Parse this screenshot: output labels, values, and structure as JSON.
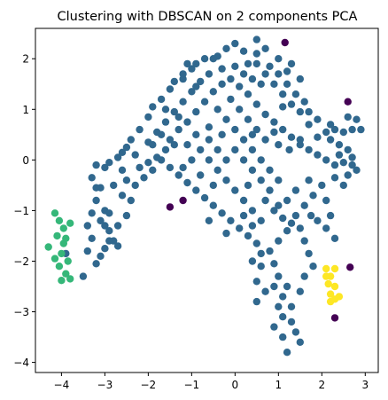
{
  "chart_data": {
    "type": "scatter",
    "title": "Clustering with DBSCAN on 2 components PCA",
    "xlabel": "",
    "ylabel": "",
    "xlim": [
      -4.6,
      3.3
    ],
    "ylim": [
      -4.2,
      2.6
    ],
    "xticks": [
      -4,
      -3,
      -2,
      -1,
      0,
      1,
      2,
      3
    ],
    "yticks": [
      -4,
      -3,
      -2,
      -1,
      0,
      1,
      2
    ],
    "xtick_labels": [
      "−4",
      "−3",
      "−2",
      "−1",
      "0",
      "1",
      "2",
      "3"
    ],
    "ytick_labels": [
      "−4",
      "−3",
      "−2",
      "−1",
      "0",
      "1",
      "2"
    ],
    "grid": false,
    "legend": "none",
    "colormap": "viridis",
    "series": [
      {
        "cluster": -1,
        "color": "#440154",
        "points": [
          [
            1.15,
            2.32
          ],
          [
            2.6,
            1.15
          ],
          [
            -1.5,
            -0.93
          ],
          [
            -1.2,
            -0.8
          ],
          [
            2.65,
            -2.12
          ],
          [
            2.3,
            -3.12
          ]
        ]
      },
      {
        "cluster": 0,
        "color": "#31688e",
        "points": [
          [
            -0.4,
            2.05
          ],
          [
            -0.2,
            2.2
          ],
          [
            0.0,
            2.3
          ],
          [
            0.2,
            2.15
          ],
          [
            0.5,
            2.38
          ],
          [
            0.7,
            2.2
          ],
          [
            -0.9,
            1.9
          ],
          [
            -1.0,
            1.8
          ],
          [
            -1.2,
            1.7
          ],
          [
            -1.4,
            1.55
          ],
          [
            -1.5,
            1.4
          ],
          [
            -1.7,
            1.2
          ],
          [
            -1.9,
            1.05
          ],
          [
            -2.0,
            0.85
          ],
          [
            -2.2,
            0.6
          ],
          [
            -2.4,
            0.4
          ],
          [
            -2.5,
            0.25
          ],
          [
            -2.7,
            0.05
          ],
          [
            -2.9,
            -0.05
          ],
          [
            -3.0,
            -0.15
          ],
          [
            -3.2,
            -0.1
          ],
          [
            -3.3,
            -0.35
          ],
          [
            -3.1,
            -0.55
          ],
          [
            -3.2,
            -0.8
          ],
          [
            -3.0,
            -1.0
          ],
          [
            -3.1,
            -1.2
          ],
          [
            -2.9,
            -1.4
          ],
          [
            -2.8,
            -1.6
          ],
          [
            -3.0,
            -1.75
          ],
          [
            -3.3,
            -1.55
          ],
          [
            -3.4,
            -1.3
          ],
          [
            -3.4,
            -1.8
          ],
          [
            -3.2,
            -2.05
          ],
          [
            -3.5,
            -2.3
          ],
          [
            -3.9,
            -1.85
          ],
          [
            -2.7,
            -1.3
          ],
          [
            -2.5,
            -1.1
          ],
          [
            -2.6,
            -0.7
          ],
          [
            -2.4,
            -0.8
          ],
          [
            -2.3,
            -0.5
          ],
          [
            -2.1,
            -0.35
          ],
          [
            -1.9,
            -0.2
          ],
          [
            -1.8,
            0.05
          ],
          [
            -1.6,
            0.2
          ],
          [
            -1.5,
            0.4
          ],
          [
            -1.3,
            0.6
          ],
          [
            -1.1,
            0.75
          ],
          [
            -0.9,
            0.95
          ],
          [
            -0.7,
            1.15
          ],
          [
            -0.5,
            1.35
          ],
          [
            -0.3,
            1.5
          ],
          [
            -0.1,
            1.6
          ],
          [
            0.1,
            1.45
          ],
          [
            0.3,
            1.3
          ],
          [
            0.5,
            1.1
          ],
          [
            0.7,
            0.9
          ],
          [
            0.9,
            0.75
          ],
          [
            1.1,
            0.6
          ],
          [
            1.3,
            0.45
          ],
          [
            1.5,
            0.3
          ],
          [
            1.7,
            0.2
          ],
          [
            1.9,
            0.1
          ],
          [
            2.1,
            0.0
          ],
          [
            2.3,
            -0.1
          ],
          [
            2.5,
            -0.05
          ],
          [
            2.7,
            0.05
          ],
          [
            2.8,
            -0.2
          ],
          [
            2.6,
            -0.3
          ],
          [
            2.4,
            0.3
          ],
          [
            2.5,
            0.55
          ],
          [
            2.7,
            0.6
          ],
          [
            2.8,
            0.8
          ],
          [
            2.6,
            0.85
          ],
          [
            2.3,
            0.6
          ],
          [
            2.2,
            0.4
          ],
          [
            1.9,
            0.45
          ],
          [
            1.7,
            0.7
          ],
          [
            1.5,
            0.95
          ],
          [
            1.3,
            1.1
          ],
          [
            1.1,
            1.3
          ],
          [
            0.9,
            1.5
          ],
          [
            0.7,
            1.7
          ],
          [
            0.5,
            1.9
          ],
          [
            1.0,
            1.7
          ],
          [
            1.2,
            1.5
          ],
          [
            1.4,
            1.3
          ],
          [
            1.6,
            1.15
          ],
          [
            1.5,
            1.6
          ],
          [
            1.3,
            1.9
          ],
          [
            1.2,
            1.75
          ],
          [
            1.0,
            2.0
          ],
          [
            0.8,
            1.85
          ],
          [
            -0.6,
            1.7
          ],
          [
            -0.8,
            1.55
          ],
          [
            -1.0,
            1.35
          ],
          [
            -1.2,
            1.15
          ],
          [
            -1.4,
            0.95
          ],
          [
            -1.6,
            0.75
          ],
          [
            -1.8,
            0.55
          ],
          [
            -2.0,
            0.35
          ],
          [
            -1.7,
            0.0
          ],
          [
            -1.5,
            -0.15
          ],
          [
            -1.3,
            -0.3
          ],
          [
            -1.1,
            -0.45
          ],
          [
            -0.9,
            -0.6
          ],
          [
            -0.7,
            -0.75
          ],
          [
            -0.5,
            -0.9
          ],
          [
            -0.3,
            -1.05
          ],
          [
            -0.1,
            -1.2
          ],
          [
            0.1,
            -1.35
          ],
          [
            0.3,
            -1.5
          ],
          [
            0.5,
            -1.65
          ],
          [
            0.6,
            -1.85
          ],
          [
            0.6,
            -2.1
          ],
          [
            0.5,
            -2.4
          ],
          [
            0.7,
            -2.6
          ],
          [
            0.9,
            -2.5
          ],
          [
            1.0,
            -2.3
          ],
          [
            0.9,
            -2.05
          ],
          [
            0.8,
            -1.8
          ],
          [
            1.0,
            -1.6
          ],
          [
            1.2,
            -1.4
          ],
          [
            1.1,
            -1.15
          ],
          [
            0.9,
            -1.0
          ],
          [
            1.1,
            -2.7
          ],
          [
            1.0,
            -2.9
          ],
          [
            1.1,
            -3.1
          ],
          [
            1.3,
            -3.2
          ],
          [
            1.4,
            -3.4
          ],
          [
            1.5,
            -3.6
          ],
          [
            1.2,
            -3.8
          ],
          [
            1.1,
            -3.5
          ],
          [
            0.9,
            -3.3
          ],
          [
            1.3,
            -2.9
          ],
          [
            1.5,
            -2.6
          ],
          [
            1.6,
            -2.3
          ],
          [
            1.8,
            -2.1
          ],
          [
            1.7,
            -1.85
          ],
          [
            1.6,
            -1.6
          ],
          [
            1.5,
            -1.35
          ],
          [
            1.4,
            -1.1
          ],
          [
            1.6,
            -0.9
          ],
          [
            1.8,
            -0.7
          ],
          [
            2.0,
            -0.5
          ],
          [
            2.1,
            -0.8
          ],
          [
            2.2,
            -1.1
          ],
          [
            2.1,
            -1.35
          ],
          [
            2.3,
            -1.55
          ],
          [
            1.9,
            -1.2
          ],
          [
            1.7,
            -0.4
          ],
          [
            1.4,
            -0.6
          ],
          [
            1.2,
            -0.8
          ],
          [
            1.0,
            -0.4
          ],
          [
            0.8,
            -0.2
          ],
          [
            0.6,
            0.0
          ],
          [
            0.4,
            0.2
          ],
          [
            0.2,
            0.4
          ],
          [
            0.0,
            0.6
          ],
          [
            -0.2,
            0.8
          ],
          [
            -0.4,
            1.0
          ],
          [
            -0.6,
            0.4
          ],
          [
            -0.8,
            0.2
          ],
          [
            -1.0,
            0.0
          ],
          [
            -1.2,
            -0.15
          ],
          [
            -0.4,
            -0.2
          ],
          [
            -0.2,
            -0.4
          ],
          [
            0.0,
            -0.6
          ],
          [
            0.2,
            -0.8
          ],
          [
            0.4,
            -1.0
          ],
          [
            0.0,
            0.2
          ],
          [
            0.2,
            0.0
          ],
          [
            0.4,
            -0.2
          ],
          [
            0.6,
            -0.4
          ],
          [
            -0.2,
            0.0
          ],
          [
            -0.4,
            0.2
          ],
          [
            -0.6,
            0.0
          ],
          [
            0.1,
            1.0
          ],
          [
            0.3,
            0.8
          ],
          [
            0.5,
            0.6
          ],
          [
            0.7,
            0.4
          ],
          [
            -0.1,
            1.2
          ],
          [
            -0.3,
            1.8
          ],
          [
            0.3,
            1.9
          ],
          [
            0.6,
            1.5
          ],
          [
            1.9,
            0.8
          ],
          [
            2.1,
            0.55
          ],
          [
            2.4,
            0.1
          ],
          [
            2.6,
            0.2
          ],
          [
            2.7,
            -0.1
          ],
          [
            2.9,
            0.6
          ],
          [
            2.2,
            0.7
          ],
          [
            -2.2,
            -0.15
          ],
          [
            -2.0,
            -0.05
          ],
          [
            -2.5,
            -0.4
          ],
          [
            -2.8,
            -0.5
          ],
          [
            -2.6,
            -0.2
          ],
          [
            -3.2,
            -0.55
          ],
          [
            -2.9,
            -1.05
          ],
          [
            -3.0,
            -1.3
          ],
          [
            -3.3,
            -1.05
          ],
          [
            -2.7,
            -1.7
          ],
          [
            -3.1,
            -1.9
          ],
          [
            -2.9,
            -1.6
          ],
          [
            -1.2,
            1.6
          ],
          [
            -0.9,
            1.45
          ],
          [
            -0.5,
            2.0
          ],
          [
            0.5,
            2.1
          ],
          [
            0.0,
            1.85
          ],
          [
            1.7,
            0.95
          ],
          [
            1.1,
            1.05
          ],
          [
            0.9,
            0.55
          ],
          [
            0.4,
            0.5
          ],
          [
            -0.3,
            0.5
          ],
          [
            -0.6,
            0.65
          ],
          [
            -0.9,
            0.5
          ],
          [
            -1.4,
            0.3
          ],
          [
            -1.9,
            0.3
          ],
          [
            0.8,
            -0.6
          ],
          [
            1.0,
            -0.9
          ],
          [
            1.3,
            -1.25
          ],
          [
            0.2,
            -1.1
          ],
          [
            -0.6,
            -1.2
          ],
          [
            -0.2,
            -1.45
          ],
          [
            0.4,
            -1.3
          ],
          [
            0.6,
            -1.2
          ],
          [
            0.3,
            -0.5
          ],
          [
            -1.6,
            1.0
          ],
          [
            -1.1,
            1.9
          ],
          [
            -0.7,
            2.0
          ],
          [
            0.2,
            1.7
          ],
          [
            0.4,
            1.6
          ],
          [
            1.5,
            0.4
          ],
          [
            2.3,
            -0.35
          ],
          [
            2.5,
            -0.5
          ],
          [
            1.75,
            -1.1
          ],
          [
            0.7,
            -0.8
          ],
          [
            -0.5,
            -0.5
          ],
          [
            -0.8,
            -0.3
          ],
          [
            1.25,
            0.2
          ],
          [
            1.0,
            0.3
          ],
          [
            -1.3,
            0.85
          ],
          [
            -1.7,
            0.5
          ],
          [
            -2.3,
            0.1
          ],
          [
            -2.6,
            0.15
          ],
          [
            -1.1,
            0.3
          ],
          [
            0.4,
            -2.0
          ],
          [
            0.5,
            -2.8
          ],
          [
            1.2,
            -2.5
          ]
        ]
      },
      {
        "cluster": 1,
        "color": "#35b779",
        "points": [
          [
            -4.15,
            -1.05
          ],
          [
            -4.05,
            -1.2
          ],
          [
            -3.95,
            -1.35
          ],
          [
            -3.8,
            -1.25
          ],
          [
            -4.1,
            -1.5
          ],
          [
            -3.95,
            -1.65
          ],
          [
            -4.3,
            -1.72
          ],
          [
            -4.0,
            -1.85
          ],
          [
            -3.85,
            -2.0
          ],
          [
            -4.05,
            -2.1
          ],
          [
            -3.9,
            -2.25
          ],
          [
            -3.8,
            -2.35
          ],
          [
            -4.0,
            -2.38
          ],
          [
            -3.9,
            -1.55
          ],
          [
            -4.15,
            -1.95
          ]
        ]
      },
      {
        "cluster": 2,
        "color": "#fde725",
        "points": [
          [
            2.1,
            -2.15
          ],
          [
            2.3,
            -2.15
          ],
          [
            2.2,
            -2.3
          ],
          [
            2.15,
            -2.45
          ],
          [
            2.3,
            -2.5
          ],
          [
            2.2,
            -2.65
          ],
          [
            2.3,
            -2.75
          ],
          [
            2.2,
            -2.8
          ],
          [
            2.4,
            -2.7
          ],
          [
            2.1,
            -2.3
          ]
        ]
      }
    ]
  }
}
